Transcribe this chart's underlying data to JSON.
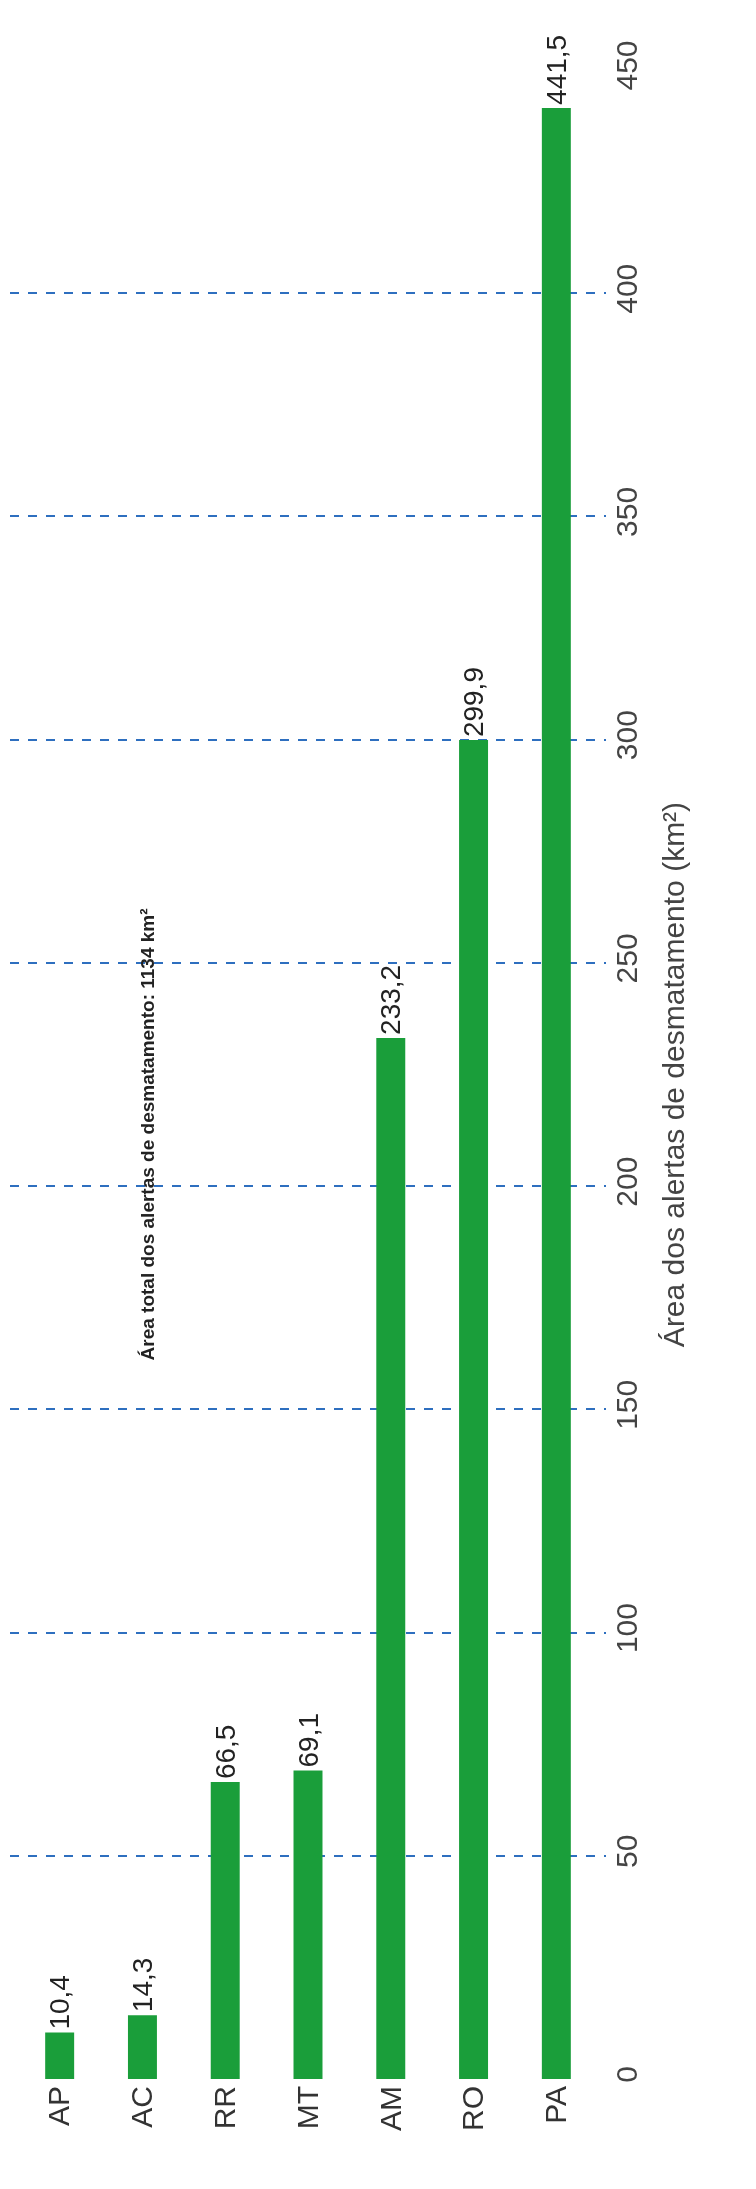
{
  "chart_data": {
    "type": "bar",
    "ylabel": "Área dos alertas de desmatamento (km²)",
    "categories": [
      "AP",
      "AC",
      "RR",
      "MT",
      "AM",
      "RO",
      "PA"
    ],
    "values": [
      10.4,
      14.3,
      66.5,
      69.1,
      233.2,
      299.9,
      441.5
    ],
    "value_labels": [
      "10,4",
      "14,3",
      "66,5",
      "69,1",
      "233,2",
      "299,9",
      "441,5"
    ],
    "color": "#1a9e3a",
    "ylim": [
      0,
      450
    ],
    "yticks": [
      0,
      50,
      100,
      150,
      200,
      250,
      300,
      350,
      400,
      450
    ],
    "grid": "y",
    "legend": false,
    "annotations": [
      "Área total dos alertas de desmatamento: 1134 km²"
    ]
  }
}
